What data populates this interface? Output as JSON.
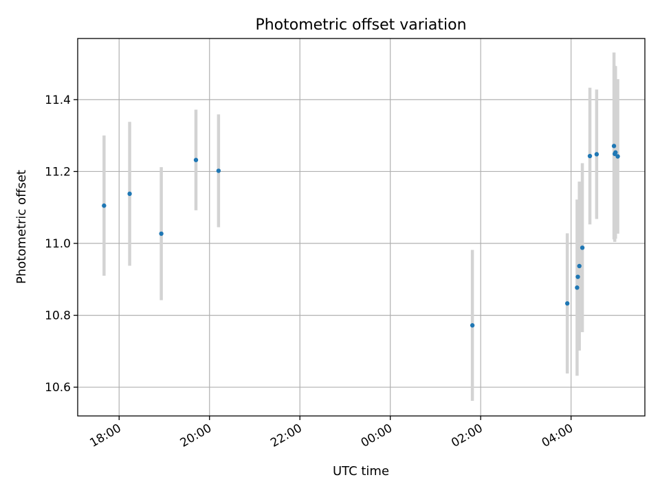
{
  "chart_data": {
    "type": "scatter",
    "title": "Photometric offset variation",
    "xlabel": "UTC time",
    "ylabel": "Photometric offset",
    "x_unit": "UTC time (hours, continuing past midnight)",
    "xlim": [
      "17:05",
      "05:38"
    ],
    "ylim": [
      10.52,
      11.57
    ],
    "grid": true,
    "x_ticks": [
      "18:00",
      "20:00",
      "22:00",
      "00:00",
      "02:00",
      "04:00"
    ],
    "y_ticks": [
      "10.6",
      "10.8",
      "11.0",
      "11.2",
      "11.4"
    ],
    "colors": {
      "point": "#1f77b4",
      "errorbar": "#d3d3d3"
    },
    "points": [
      {
        "t": "17:40",
        "y": 11.105,
        "err": 0.195
      },
      {
        "t": "18:14",
        "y": 11.138,
        "err": 0.2
      },
      {
        "t": "18:56",
        "y": 11.027,
        "err": 0.185
      },
      {
        "t": "19:42",
        "y": 11.232,
        "err": 0.14
      },
      {
        "t": "20:12",
        "y": 11.202,
        "err": 0.157
      },
      {
        "t": "01:49",
        "y": 10.772,
        "err": 0.21
      },
      {
        "t": "03:55",
        "y": 10.833,
        "err": 0.195
      },
      {
        "t": "04:08",
        "y": 10.877,
        "err": 0.245
      },
      {
        "t": "04:09",
        "y": 10.907,
        "err": 0.205
      },
      {
        "t": "04:11",
        "y": 10.937,
        "err": 0.235
      },
      {
        "t": "04:15",
        "y": 10.988,
        "err": 0.235
      },
      {
        "t": "04:25",
        "y": 11.243,
        "err": 0.19
      },
      {
        "t": "04:34",
        "y": 11.248,
        "err": 0.18
      },
      {
        "t": "04:57",
        "y": 11.271,
        "err": 0.26
      },
      {
        "t": "04:58",
        "y": 11.249,
        "err": 0.245
      },
      {
        "t": "04:59",
        "y": 11.253,
        "err": 0.24
      },
      {
        "t": "05:02",
        "y": 11.242,
        "err": 0.215
      }
    ]
  }
}
